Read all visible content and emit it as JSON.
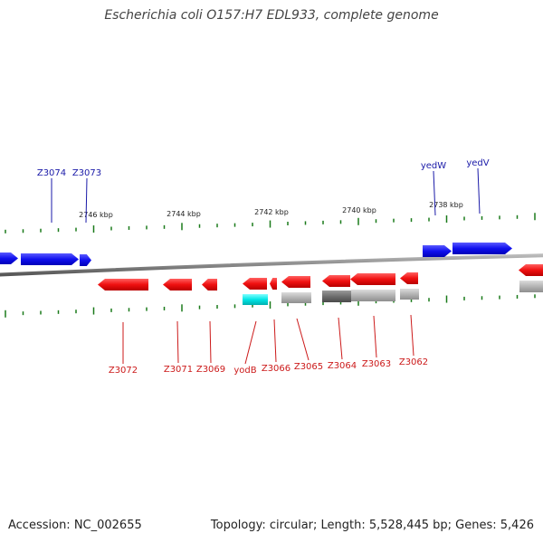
{
  "title": "Escherichia coli O157:H7 EDL933, complete genome",
  "footer": {
    "accession": "Accession: NC_002655",
    "summary": "Topology: circular; Length: 5,528,445 bp; Genes: 5,426"
  },
  "colors": {
    "forward_gene": "#1414f0",
    "reverse_gene": "#f01414",
    "forward_label": "#1a1aa8",
    "reverse_label": "#cc1a1a",
    "cyan_feature": "#00e5e5",
    "grey_feature": "#b4b4b4",
    "dark_grey_feature": "#6e6e6e",
    "tick": "#1a7a1a",
    "backbone": "#888888"
  },
  "scale_labels": [
    "2746 kbp",
    "2744 kbp",
    "2742 kbp",
    "2740 kbp",
    "2738 kbp"
  ],
  "forward_gene_labels": [
    "Z3074",
    "Z3073",
    "yedW",
    "yedV"
  ],
  "reverse_gene_labels": [
    "Z3072",
    "Z3071",
    "Z3069",
    "yodB",
    "Z3066",
    "Z3065",
    "Z3064",
    "Z3063",
    "Z3062"
  ]
}
